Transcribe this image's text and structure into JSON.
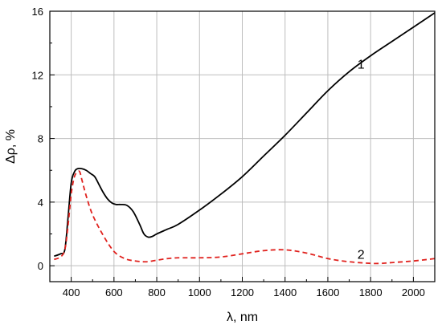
{
  "chart_data": {
    "type": "line",
    "title": "",
    "xlabel": "λ, nm",
    "ylabel": "Δρ, %",
    "xlim": [
      300,
      2100
    ],
    "ylim": [
      -1,
      16
    ],
    "xticks": [
      400,
      600,
      800,
      1000,
      1200,
      1400,
      1600,
      1800,
      2000
    ],
    "yticks": [
      0,
      4,
      8,
      12,
      16
    ],
    "grid": true,
    "series": [
      {
        "name": "1",
        "color": "#000000",
        "dash": "solid",
        "x": [
          320,
          350,
          370,
          385,
          400,
          415,
          430,
          450,
          470,
          490,
          510,
          530,
          550,
          570,
          590,
          610,
          630,
          660,
          690,
          720,
          740,
          760,
          780,
          800,
          850,
          900,
          1000,
          1100,
          1200,
          1300,
          1400,
          1500,
          1600,
          1700,
          1800,
          1900,
          2000,
          2100
        ],
        "values": [
          0.6,
          0.75,
          1.0,
          3.0,
          5.2,
          5.9,
          6.1,
          6.1,
          6.0,
          5.8,
          5.6,
          5.1,
          4.6,
          4.2,
          3.95,
          3.85,
          3.85,
          3.8,
          3.4,
          2.6,
          2.0,
          1.8,
          1.85,
          2.0,
          2.3,
          2.6,
          3.5,
          4.5,
          5.6,
          6.9,
          8.2,
          9.6,
          11.0,
          12.2,
          13.2,
          14.1,
          15.0,
          15.9
        ]
      },
      {
        "name": "2",
        "color": "#e0211d",
        "dash": "dashed",
        "x": [
          320,
          350,
          370,
          385,
          400,
          415,
          430,
          440,
          450,
          470,
          500,
          550,
          600,
          650,
          700,
          750,
          800,
          850,
          900,
          1000,
          1100,
          1200,
          1300,
          1400,
          1500,
          1600,
          1700,
          1800,
          1850,
          1900,
          2000,
          2100
        ],
        "values": [
          0.4,
          0.55,
          1.0,
          2.5,
          4.5,
          5.6,
          5.9,
          5.9,
          5.4,
          4.4,
          3.2,
          1.9,
          0.9,
          0.45,
          0.3,
          0.25,
          0.35,
          0.45,
          0.5,
          0.5,
          0.55,
          0.75,
          0.95,
          1.0,
          0.8,
          0.45,
          0.25,
          0.15,
          0.15,
          0.2,
          0.3,
          0.45
        ]
      }
    ]
  }
}
